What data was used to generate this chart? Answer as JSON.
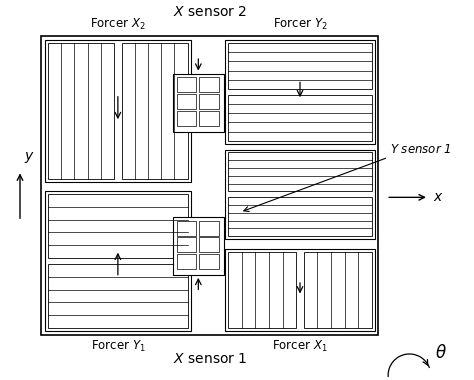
{
  "bg_color": "#ffffff",
  "lw_outer": 1.0,
  "lw_inner": 0.7,
  "lw_stripe": 0.5,
  "title_top": "$X$ sensor 2",
  "title_bottom": "$X$ sensor 1",
  "label_forcer_x2": "Forcer $X_2$",
  "label_forcer_y2": "Forcer $Y_2$",
  "label_forcer_y1": "Forcer $Y_1$",
  "label_forcer_x1": "Forcer $X_1$",
  "label_y_sensor1": "$Y$ sensor 1",
  "label_x": "$x$",
  "label_y": "$y$",
  "label_theta": "$\\theta$",
  "fs_title": 10,
  "fs_label": 8.5
}
